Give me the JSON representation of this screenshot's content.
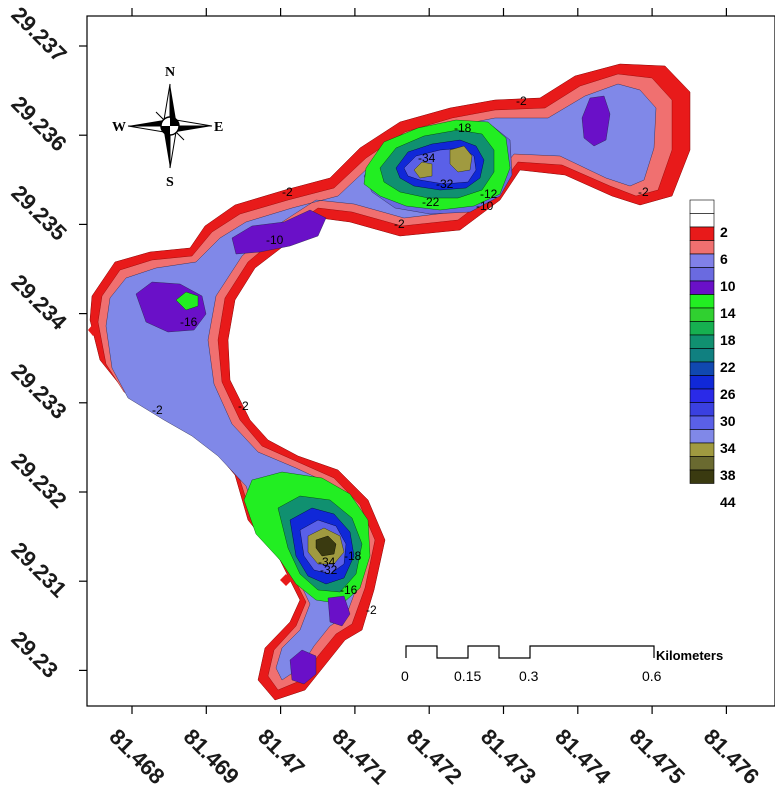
{
  "axes": {
    "x_ticks": [
      "81.468",
      "81.469",
      "81.47",
      "81.471",
      "81.472",
      "81.473",
      "81.474",
      "81.475",
      "81.476"
    ],
    "y_ticks": [
      "29.237",
      "29.236",
      "29.235",
      "29.234",
      "29.233",
      "29.232",
      "29.231",
      "29.23"
    ]
  },
  "compass": {
    "north": "N",
    "south": "S",
    "east": "E",
    "west": "W"
  },
  "legend": {
    "labels": [
      "2",
      "6",
      "10",
      "14",
      "18",
      "22",
      "26",
      "30",
      "34",
      "38",
      "44"
    ],
    "colors": [
      "#ffffff",
      "#ffffff",
      "#e81a1a",
      "#f07070",
      "#8080e8",
      "#6a6ae0",
      "#6a10c8",
      "#22ee22",
      "#30d030",
      "#16b050",
      "#109070",
      "#108080",
      "#1048b0",
      "#1028d8",
      "#2a2ae8",
      "#3a40e0",
      "#5a60e8",
      "#8088e8",
      "#a09a40",
      "#6a6a30",
      "#3a3a10"
    ]
  },
  "contour_labels": [
    {
      "text": "-2"
    },
    {
      "text": "-18"
    },
    {
      "text": "-34"
    },
    {
      "text": "-32"
    },
    {
      "text": "-22"
    },
    {
      "text": "-12"
    },
    {
      "text": "-10"
    },
    {
      "text": "-2"
    },
    {
      "text": "-2"
    },
    {
      "text": "-2"
    },
    {
      "text": "-10"
    },
    {
      "text": "-16"
    },
    {
      "text": "-2"
    },
    {
      "text": "-2"
    },
    {
      "text": "-34"
    },
    {
      "text": "-32"
    },
    {
      "text": "-18"
    },
    {
      "text": "-16"
    },
    {
      "text": "-2"
    }
  ],
  "scale_bar": {
    "unit": "Kilometers",
    "labels": [
      "0",
      "0.15",
      "0.3",
      "0.6"
    ]
  }
}
